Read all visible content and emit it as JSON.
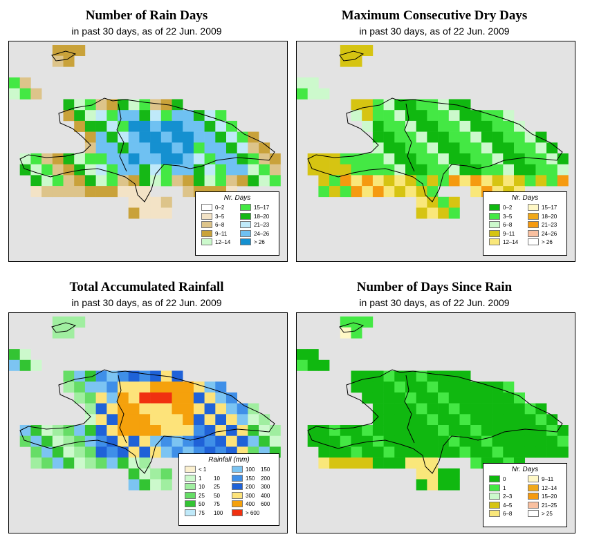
{
  "panels": [
    {
      "title": "Number of Rain Days",
      "subtitle": "in past 30 days, as of  22 Jun. 2009",
      "legend_title": "Nr. Days",
      "legend_items": [
        {
          "color": "#ffffff",
          "label": "0–2"
        },
        {
          "color": "#f3e3c6",
          "label": "3–5"
        },
        {
          "color": "#ddc48a",
          "label": "6–8"
        },
        {
          "color": "#c9a23a",
          "label": "9–11"
        },
        {
          "color": "#ccf9cc",
          "label": "12–14"
        },
        {
          "color": "#44e844",
          "label": "15–17"
        },
        {
          "color": "#16b816",
          "label": "18–20"
        },
        {
          "color": "#bfe9f9",
          "label": "21–23"
        },
        {
          "color": "#6fc1f2",
          "label": "24–26"
        },
        {
          "color": "#1590d0",
          "label": "> 26"
        }
      ]
    },
    {
      "title": "Maximum Consecutive Dry Days",
      "subtitle": "in past 30 days, as of  22 Jun. 2009",
      "legend_title": "Nr. Days",
      "legend_items": [
        {
          "color": "#10b810",
          "label": "0–2"
        },
        {
          "color": "#44e844",
          "label": "3–5"
        },
        {
          "color": "#ccf9cc",
          "label": "6–8"
        },
        {
          "color": "#d6c412",
          "label": "9–11"
        },
        {
          "color": "#f9e77a",
          "label": "12–14"
        },
        {
          "color": "#fff8c6",
          "label": "15–17"
        },
        {
          "color": "#f0a81a",
          "label": "18–20"
        },
        {
          "color": "#f59a10",
          "label": "21–23"
        },
        {
          "color": "#f9c0a0",
          "label": "24–26"
        },
        {
          "color": "#ffffff",
          "label": "> 26"
        }
      ]
    },
    {
      "title": "Total Accumulated Rainfall",
      "subtitle": "in past 30 days, as of  22 Jun. 2009",
      "legend_title": "Rainfall (mm)",
      "legend_items": [
        {
          "color": "#fbf0cf",
          "label": "< 1",
          "label2": ""
        },
        {
          "color": "#ccf9cc",
          "label": "1",
          "label2": "10"
        },
        {
          "color": "#a0eea0",
          "label": "10",
          "label2": "25"
        },
        {
          "color": "#66dd66",
          "label": "25",
          "label2": "50"
        },
        {
          "color": "#33c433",
          "label": "50",
          "label2": "75"
        },
        {
          "color": "#bfe9f9",
          "label": "75",
          "label2": "100"
        },
        {
          "color": "#7cc4f2",
          "label": "100",
          "label2": "150"
        },
        {
          "color": "#3f8fe8",
          "label": "150",
          "label2": "200"
        },
        {
          "color": "#1f62d8",
          "label": "200",
          "label2": "300"
        },
        {
          "color": "#fde37a",
          "label": "300",
          "label2": "400"
        },
        {
          "color": "#f5a10c",
          "label": "400",
          "label2": "600"
        },
        {
          "color": "#f03010",
          "label": "> 600",
          "label2": ""
        }
      ]
    },
    {
      "title": "Number of Days Since Rain",
      "subtitle": "in past 30 days, as of  22 Jun. 2009",
      "legend_title": "Nr. Days",
      "legend_items": [
        {
          "color": "#10b810",
          "label": "0"
        },
        {
          "color": "#44e844",
          "label": "1"
        },
        {
          "color": "#ccf9cc",
          "label": "2–3"
        },
        {
          "color": "#d6c412",
          "label": "4–5"
        },
        {
          "color": "#f9e77a",
          "label": "6–8"
        },
        {
          "color": "#fff8c6",
          "label": "9–11"
        },
        {
          "color": "#f0a81a",
          "label": "12–14"
        },
        {
          "color": "#f59a10",
          "label": "15–20"
        },
        {
          "color": "#f9c0a0",
          "label": "21–25"
        },
        {
          "color": "#ffffff",
          "label": "> 25"
        }
      ]
    }
  ]
}
